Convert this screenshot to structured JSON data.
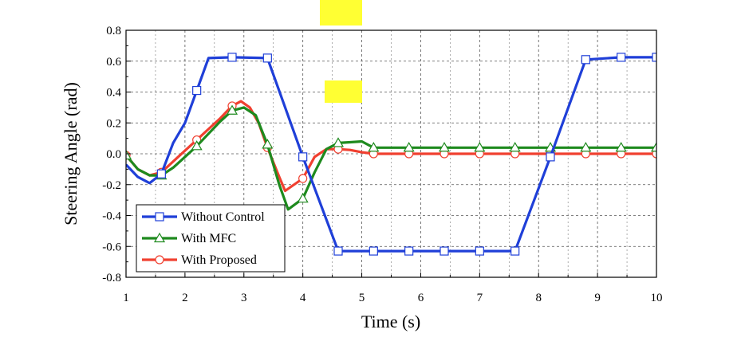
{
  "chart_data": {
    "type": "line",
    "title": "",
    "xlabel": "Time (s)",
    "ylabel": "Steering Angle (rad)",
    "xlim": [
      1,
      10
    ],
    "ylim": [
      -0.8,
      0.8
    ],
    "x_ticks": [
      "1",
      "2",
      "3",
      "4",
      "5",
      "6",
      "7",
      "8",
      "9",
      "10"
    ],
    "y_ticks": [
      "-0.8",
      "-0.6",
      "-0.4",
      "-0.2",
      "0.0",
      "0.2",
      "0.4",
      "0.6",
      "0.8"
    ],
    "grid": true,
    "legend_position": "bottom-left",
    "highlights": [
      "#ffff33",
      "#ffff33"
    ],
    "series": [
      {
        "name": "Without Control",
        "color": "#1f3fd8",
        "marker": "square",
        "x": [
          1.0,
          1.2,
          1.4,
          1.6,
          1.8,
          2.0,
          2.2,
          2.4,
          2.8,
          3.4,
          4.0,
          4.6,
          5.2,
          5.8,
          6.4,
          7.0,
          7.6,
          8.2,
          8.8,
          9.4,
          10.0
        ],
        "y": [
          -0.07,
          -0.15,
          -0.19,
          -0.13,
          0.07,
          0.2,
          0.41,
          0.62,
          0.625,
          0.62,
          -0.02,
          -0.63,
          -0.63,
          -0.63,
          -0.63,
          -0.63,
          -0.63,
          -0.02,
          0.61,
          0.625,
          0.625
        ],
        "marker_x": [
          1.6,
          2.2,
          2.8,
          3.4,
          4.0,
          4.6,
          5.2,
          5.8,
          6.4,
          7.0,
          7.6,
          8.2,
          8.8,
          9.4,
          10.0
        ],
        "marker_y": [
          -0.13,
          0.41,
          0.625,
          0.62,
          -0.02,
          -0.63,
          -0.63,
          -0.63,
          -0.63,
          -0.63,
          -0.63,
          -0.02,
          0.61,
          0.625,
          0.625
        ]
      },
      {
        "name": "With MFC",
        "color": "#1e8a1e",
        "marker": "triangle",
        "x": [
          1.0,
          1.2,
          1.4,
          1.6,
          1.8,
          2.0,
          2.2,
          2.4,
          2.6,
          2.8,
          3.0,
          3.2,
          3.4,
          3.6,
          3.75,
          4.0,
          4.2,
          4.4,
          4.6,
          4.8,
          5.0,
          5.2,
          6.0,
          7.0,
          8.0,
          9.0,
          10.0
        ],
        "y": [
          -0.01,
          -0.1,
          -0.14,
          -0.14,
          -0.09,
          -0.02,
          0.05,
          0.13,
          0.21,
          0.28,
          0.3,
          0.25,
          0.06,
          -0.2,
          -0.36,
          -0.29,
          -0.12,
          0.03,
          0.07,
          0.075,
          0.08,
          0.04,
          0.04,
          0.04,
          0.04,
          0.04,
          0.04
        ],
        "marker_x": [
          1.0,
          1.6,
          2.2,
          2.8,
          3.4,
          4.0,
          4.6,
          5.2,
          5.8,
          6.4,
          7.0,
          7.6,
          8.2,
          8.8,
          9.4,
          10.0
        ],
        "marker_y": [
          -0.01,
          -0.14,
          0.05,
          0.28,
          0.06,
          -0.29,
          0.07,
          0.04,
          0.04,
          0.04,
          0.04,
          0.04,
          0.04,
          0.04,
          0.04,
          0.04
        ]
      },
      {
        "name": "With Proposed",
        "color": "#f04030",
        "marker": "circle",
        "x": [
          1.0,
          1.2,
          1.4,
          1.6,
          1.8,
          2.0,
          2.2,
          2.4,
          2.6,
          2.8,
          2.95,
          3.1,
          3.25,
          3.4,
          3.6,
          3.7,
          4.0,
          4.2,
          4.4,
          4.6,
          4.8,
          5.0,
          5.2,
          6.0,
          7.0,
          8.0,
          9.0,
          10.0
        ],
        "y": [
          -0.01,
          -0.1,
          -0.14,
          -0.12,
          -0.05,
          0.02,
          0.09,
          0.16,
          0.23,
          0.31,
          0.34,
          0.3,
          0.2,
          0.04,
          -0.15,
          -0.24,
          -0.16,
          -0.02,
          0.03,
          0.03,
          0.025,
          0.01,
          0.0,
          0.0,
          0.0,
          0.0,
          0.0,
          0.0
        ],
        "marker_x": [
          1.0,
          1.6,
          2.2,
          2.8,
          3.4,
          4.0,
          4.6,
          5.2,
          5.8,
          6.4,
          7.0,
          7.6,
          8.2,
          8.8,
          9.4,
          10.0
        ],
        "marker_y": [
          -0.01,
          -0.12,
          0.09,
          0.31,
          0.04,
          -0.16,
          0.03,
          0.0,
          0.0,
          0.0,
          0.0,
          0.0,
          0.0,
          0.0,
          0.0,
          0.0
        ]
      }
    ]
  }
}
